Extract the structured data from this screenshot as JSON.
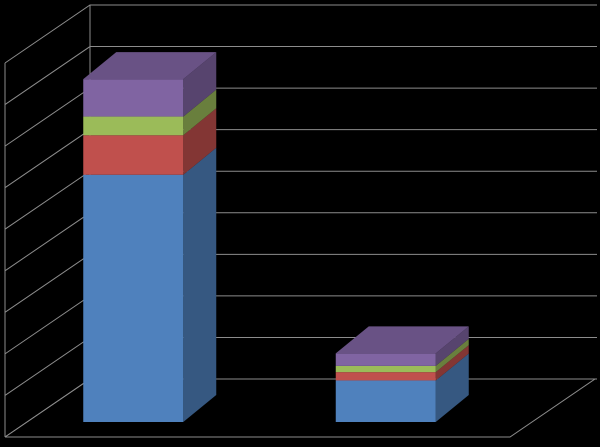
{
  "chart_data": {
    "type": "bar3d_stacked",
    "categories": [
      null,
      null
    ],
    "series": [
      {
        "color": "#4f81bd",
        "values": [
          5.95,
          1.0
        ]
      },
      {
        "color": "#c0504d",
        "values": [
          0.95,
          0.2
        ]
      },
      {
        "color": "#9bbb59",
        "values": [
          0.45,
          0.15
        ]
      },
      {
        "color": "#8064a2",
        "values": [
          0.9,
          0.3
        ]
      }
    ],
    "ylim": [
      0,
      9
    ],
    "yticks": [
      0,
      1,
      2,
      3,
      4,
      5,
      6,
      7,
      8,
      9
    ],
    "grid": true
  }
}
